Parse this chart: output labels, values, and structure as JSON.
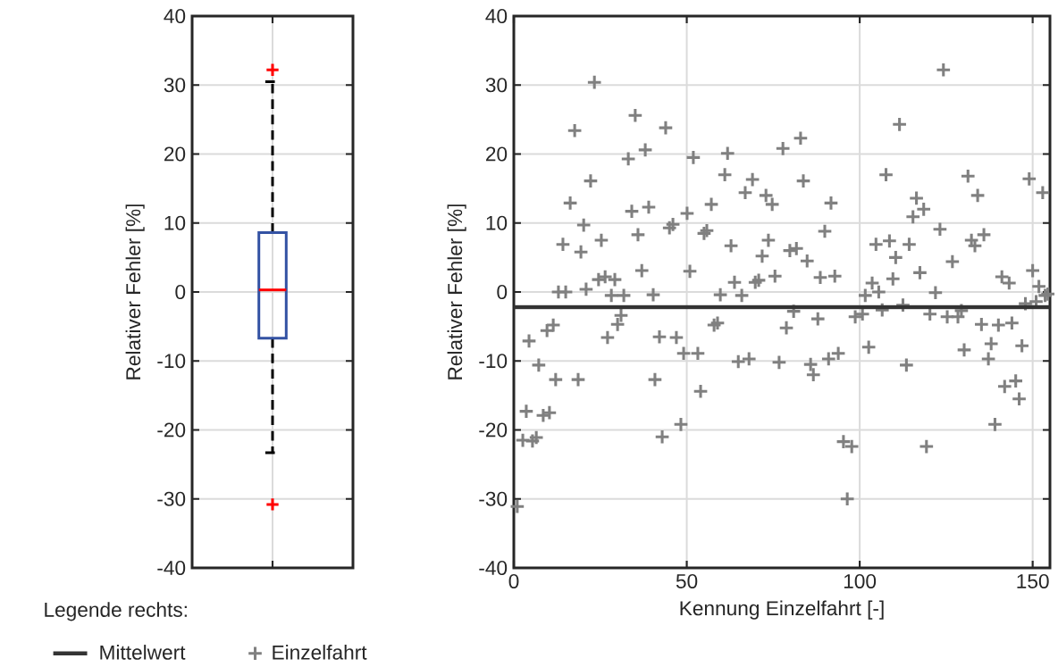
{
  "chart_data": [
    {
      "type": "box",
      "ylabel": "Relativer Fehler [%]",
      "categories": [
        null
      ],
      "color": "#3352a3",
      "boxes": [
        {
          "low": -23.3,
          "q1": -6.7,
          "median": 0.3,
          "q3": 8.6,
          "high": 30.5,
          "outliers": [
            32.2,
            -30.8
          ]
        }
      ],
      "ylim": [
        -40,
        40
      ],
      "yticks": [
        -40,
        -30,
        -20,
        -10,
        0,
        10,
        20,
        30,
        40
      ],
      "grid": true,
      "tick_labels": "y"
    },
    {
      "type": "scatter",
      "xlabel": "Kennung Einzelfahrt [-]",
      "ylabel": "Relativer Fehler [%]",
      "marker": "cross",
      "series": [
        {
          "name": "Einzelfahrt",
          "color": "#808080",
          "x": [
            1.0,
            2.6,
            3.6,
            4.4,
            5.4,
            6.5,
            7.2,
            8.5,
            9.6,
            10.3,
            11.4,
            12.1,
            12.9,
            14.2,
            15,
            16.3,
            17.6,
            18.6,
            19.4,
            20.2,
            20.9,
            22.2,
            23.3,
            24.5,
            25.3,
            26.4,
            27.1,
            28.2,
            29.2,
            30,
            31,
            31.8,
            33.1,
            34.1,
            35.1,
            35.9,
            37,
            38,
            39,
            40.3,
            40.8,
            42.1,
            42.9,
            43.9,
            45,
            46,
            47,
            48.3,
            49.1,
            50.1,
            50.9,
            51.9,
            53.2,
            54,
            55,
            55.8,
            57.1,
            57.9,
            58.9,
            59.7,
            61,
            61.8,
            62.8,
            63.8,
            64.9,
            65.9,
            66.9,
            68,
            69,
            69.8,
            70.8,
            71.8,
            72.9,
            73.6,
            74.7,
            75.5,
            76.7,
            77.8,
            78.8,
            79.8,
            80.9,
            81.7,
            82.9,
            83.7,
            84.8,
            85.8,
            86.6,
            87.9,
            88.6,
            89.9,
            91,
            91.7,
            92.8,
            93.8,
            95.3,
            96.4,
            97.7,
            98.7,
            100.8,
            101.6,
            102.6,
            103.6,
            104.7,
            105.5,
            106.5,
            107.6,
            108.6,
            109.6,
            110.4,
            111.5,
            112.5,
            113.5,
            114.3,
            115.4,
            116.4,
            117.4,
            118.5,
            119.3,
            120.3,
            121.9,
            123.2,
            124.2,
            125.3,
            126.8,
            128.4,
            129.4,
            130.2,
            131.3,
            132.3,
            133.3,
            134.1,
            135.2,
            135.9,
            137.2,
            138,
            139.1,
            140.1,
            141.1,
            141.9,
            143.2,
            144,
            145.1,
            146.1,
            146.9,
            147.9,
            149,
            150,
            151,
            151.8,
            152.9,
            153.6,
            154.4
          ],
          "values": [
            -31.1,
            -21.5,
            -17.3,
            -7.1,
            -21.6,
            -21.1,
            -10.6,
            -17.9,
            -5.6,
            -17.5,
            -4.8,
            -12.7,
            0,
            6.9,
            0,
            12.9,
            23.4,
            -12.7,
            5.8,
            9.7,
            0.4,
            16.1,
            30.4,
            1.8,
            7.5,
            2.2,
            -6.6,
            -0.5,
            1.8,
            -4.7,
            -3.4,
            -0.5,
            19.3,
            11.7,
            25.6,
            8.3,
            3.1,
            20.6,
            12.3,
            -0.4,
            -12.7,
            -6.5,
            -21,
            23.8,
            9.3,
            9.8,
            -6.6,
            -19.2,
            -8.9,
            11.4,
            3,
            19.5,
            -8.9,
            -14.4,
            8.5,
            8.9,
            12.7,
            -4.8,
            -4.5,
            -0.4,
            17,
            20.1,
            6.7,
            1.4,
            -10.1,
            -0.5,
            14.4,
            -9.7,
            16.3,
            1.4,
            1.7,
            5.2,
            14,
            7.5,
            12.7,
            2.3,
            -10.2,
            20.8,
            -5.2,
            6,
            -2.8,
            6.3,
            22.3,
            16.1,
            4.5,
            -10.5,
            -12,
            -3.9,
            2.1,
            8.8,
            -9.7,
            12.9,
            2.3,
            -8.9,
            -21.7,
            -30,
            -22.4,
            -3.6,
            -3.2,
            -0.5,
            -8,
            1.3,
            6.9,
            0,
            -2.6,
            17,
            7.4,
            1.9,
            5,
            24.3,
            -1.9,
            -10.6,
            6.9,
            10.9,
            13.6,
            2.8,
            12,
            -22.4,
            -3.2,
            -0.1,
            9.1,
            32.2,
            -3.6,
            4.4,
            -3.6,
            -2.7,
            -8.4,
            16.8,
            7.5,
            6.7,
            14,
            -4.7,
            8.3,
            -9.7,
            -7.5,
            -19.2,
            -4.8,
            2.2,
            -13.7,
            1.3,
            -4.5,
            -12.9,
            -15.5,
            -7.8,
            -1.7,
            16.4,
            3.1,
            -1.4,
            0.8,
            14.4,
            -0.5,
            -0.3
          ]
        }
      ],
      "ref_lines": [
        {
          "axis": "y",
          "value": -2.2,
          "label": "Mittelwert",
          "color": "#333333"
        }
      ],
      "legend": "bottom left",
      "legend_title": "Legende rechts:",
      "xlim": [
        0,
        155
      ],
      "xticks": [
        0,
        50,
        100,
        150
      ],
      "ylim": [
        -40,
        40
      ],
      "yticks": [
        -40,
        -30,
        -20,
        -10,
        0,
        10,
        20,
        30,
        40
      ],
      "grid": true
    }
  ]
}
